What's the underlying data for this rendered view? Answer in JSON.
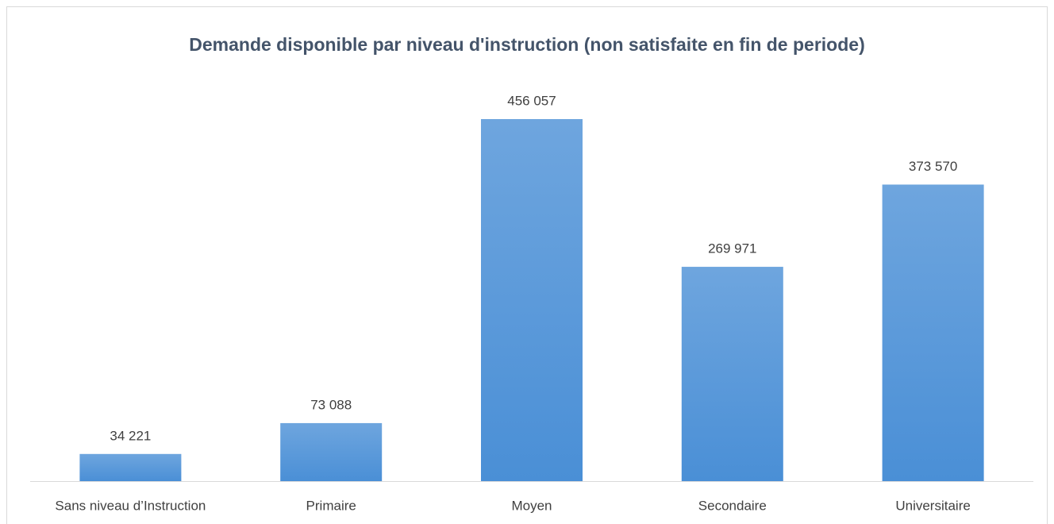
{
  "chart_data": {
    "type": "bar",
    "title": "Demande disponible par niveau d'instruction (non satisfaite en fin de periode)",
    "categories": [
      "Sans niveau d’Instruction",
      "Primaire",
      "Moyen",
      "Secondaire",
      "Universitaire"
    ],
    "values": [
      34221,
      73088,
      456057,
      269971,
      373570
    ],
    "value_labels": [
      "34 221",
      "73 088",
      "456 057",
      "269 971",
      "373 570"
    ],
    "color": "#4a8fd6"
  }
}
